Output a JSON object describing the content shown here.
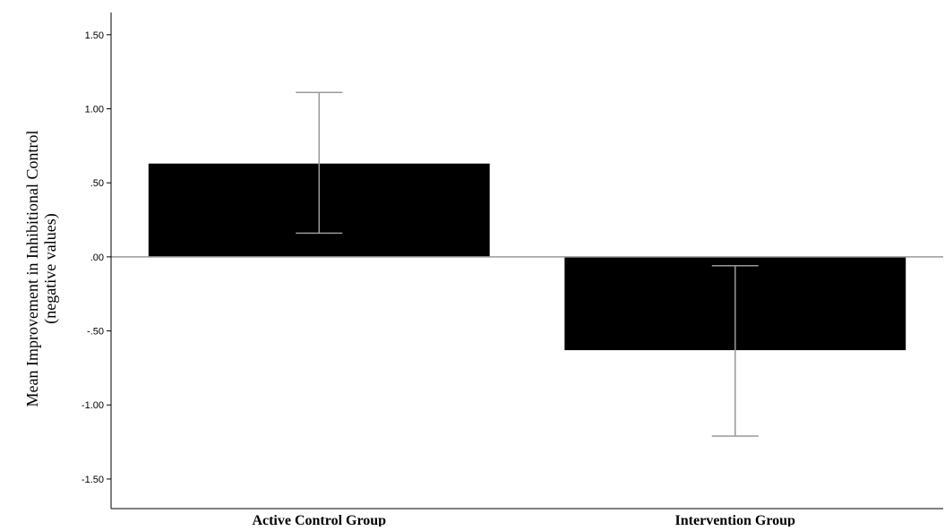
{
  "chart_data": {
    "type": "bar",
    "title": "",
    "xlabel": "",
    "ylabel_lines": [
      "Mean Improvement in Inhibitional Control",
      "(negative values)"
    ],
    "categories": [
      "Active Control Group",
      "Intervention Group"
    ],
    "values": [
      0.63,
      -0.63
    ],
    "error_bars": {
      "lower": [
        0.16,
        -1.21
      ],
      "upper": [
        1.11,
        -0.06
      ]
    },
    "ylim": [
      -1.7,
      1.65
    ],
    "yticks": [
      1.5,
      1.0,
      0.5,
      0.0,
      -0.5,
      -1.0,
      -1.5
    ],
    "ytick_labels": [
      "1.50",
      "1.00",
      ".50",
      ".00",
      "-.50",
      "-1.00",
      "-1.50"
    ],
    "grid": false,
    "colors": {
      "bar": "#000000",
      "error_bar": "#999999",
      "zero_line": "#999999",
      "axis": "#000000"
    }
  }
}
